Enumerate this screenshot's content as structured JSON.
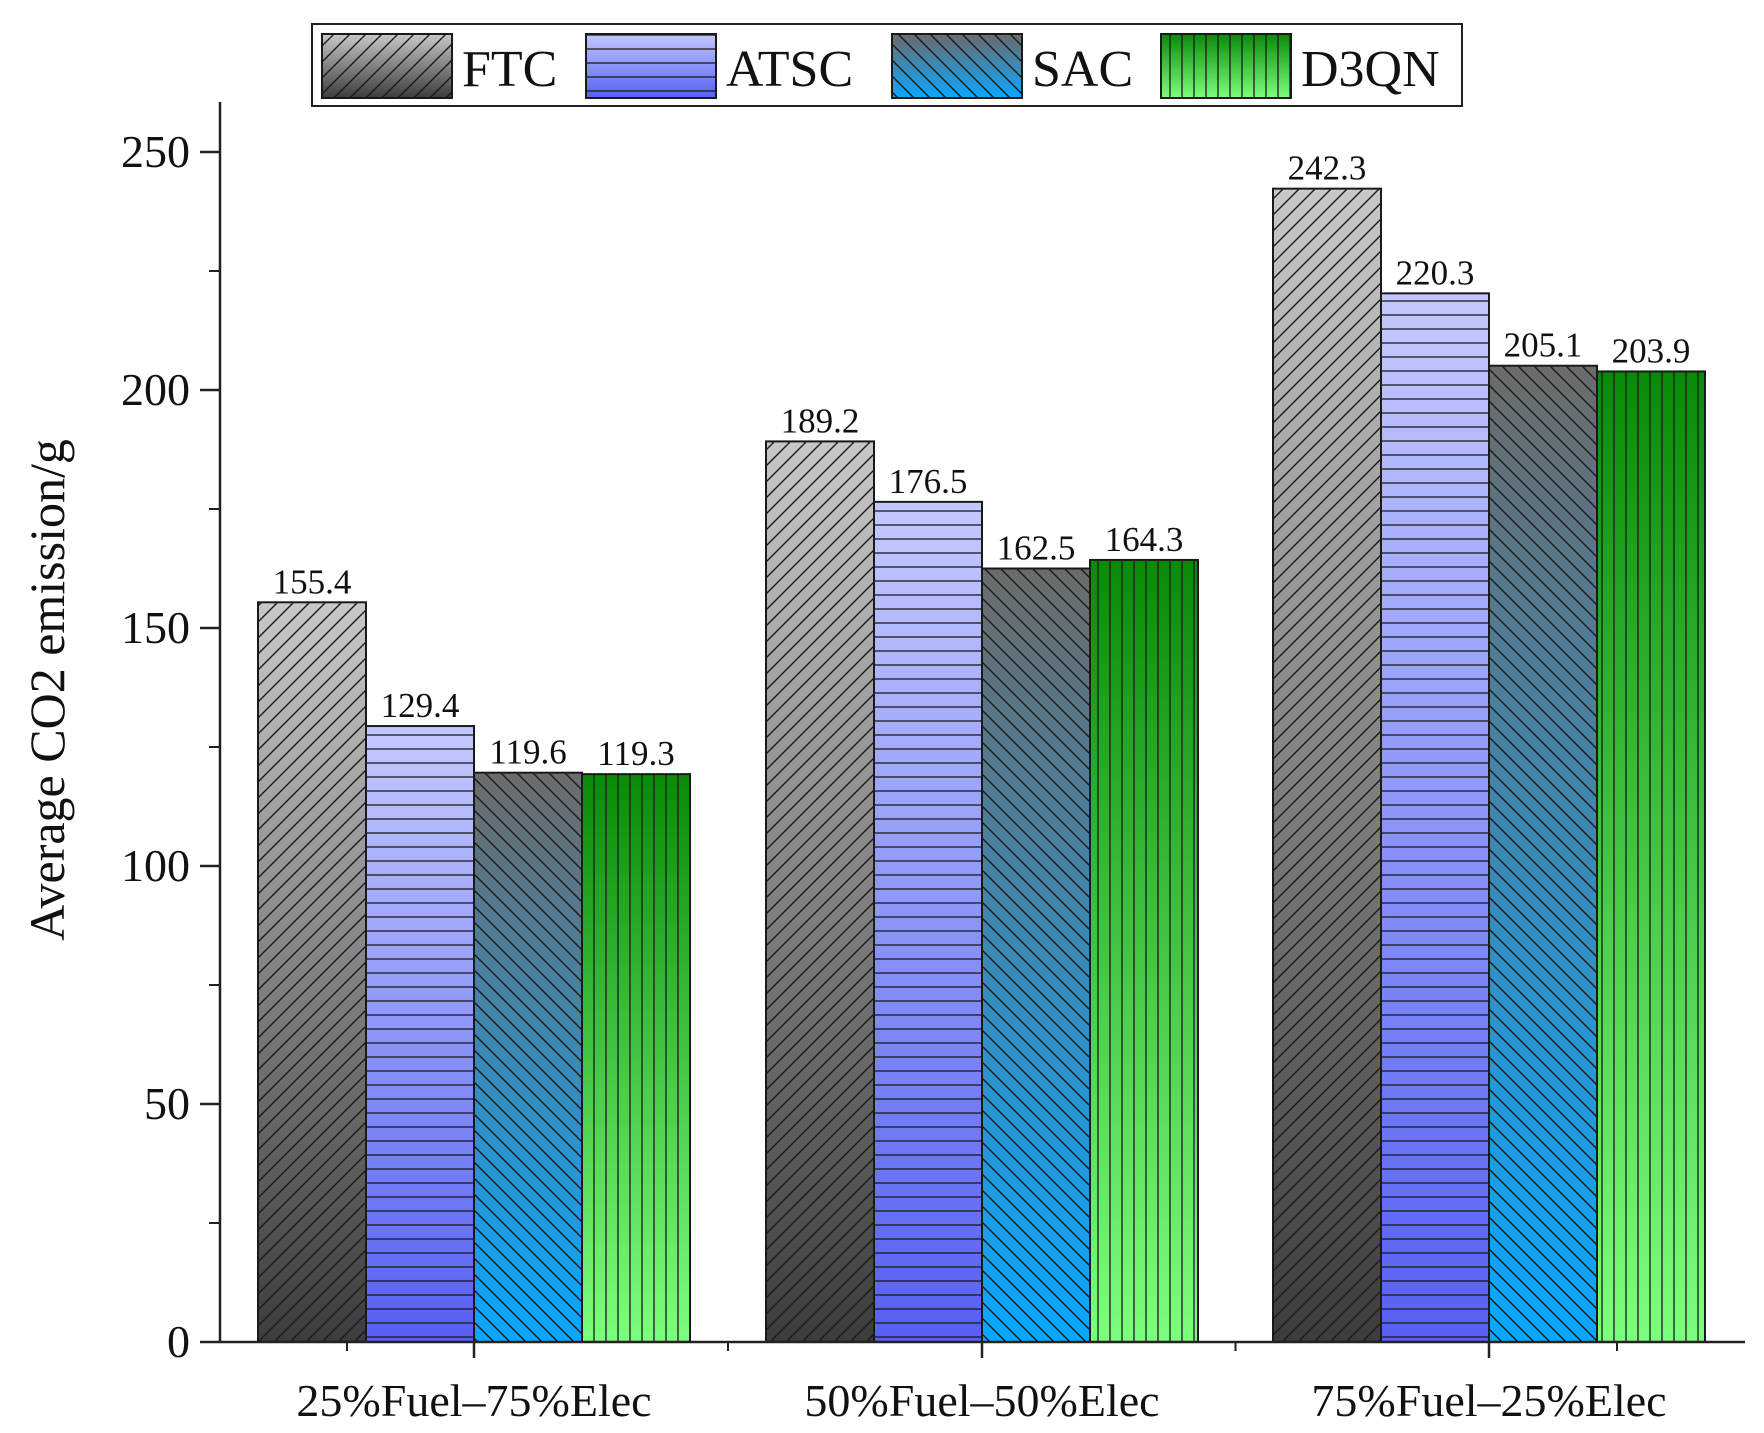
{
  "chart_data": {
    "type": "bar",
    "title": "",
    "xlabel": "",
    "ylabel": "Average CO2 emission/g",
    "ylim": [
      0,
      260
    ],
    "yticks": [
      0,
      50,
      100,
      150,
      200,
      250
    ],
    "legend_position": "top",
    "grid": false,
    "categories": [
      "25%Fuel–75%Elec",
      "50%Fuel–50%Elec",
      "75%Fuel–25%Elec"
    ],
    "series": [
      {
        "name": "FTC",
        "values": [
          155.4,
          189.2,
          242.3
        ],
        "labels": [
          "155.4",
          "189.2",
          "242.3"
        ],
        "color_top": "#c8c8c8",
        "color_bottom": "#3c3c3c",
        "pattern": "diag-up"
      },
      {
        "name": "ATSC",
        "values": [
          129.4,
          176.5,
          220.3
        ],
        "labels": [
          "129.4",
          "176.5",
          "220.3"
        ],
        "color_top": "#c3c9ff",
        "color_bottom": "#5560f2",
        "pattern": "horizontal"
      },
      {
        "name": "SAC",
        "values": [
          119.6,
          162.5,
          205.1
        ],
        "labels": [
          "119.6",
          "162.5",
          "205.1"
        ],
        "color_top": "#6b6b6b",
        "color_bottom": "#0aa7ff",
        "pattern": "diag-down"
      },
      {
        "name": "D3QN",
        "values": [
          119.3,
          164.3,
          203.9
        ],
        "labels": [
          "119.3",
          "164.3",
          "203.9"
        ],
        "color_top": "#0a8a0a",
        "color_bottom": "#7dff7d",
        "pattern": "vertical"
      }
    ]
  }
}
